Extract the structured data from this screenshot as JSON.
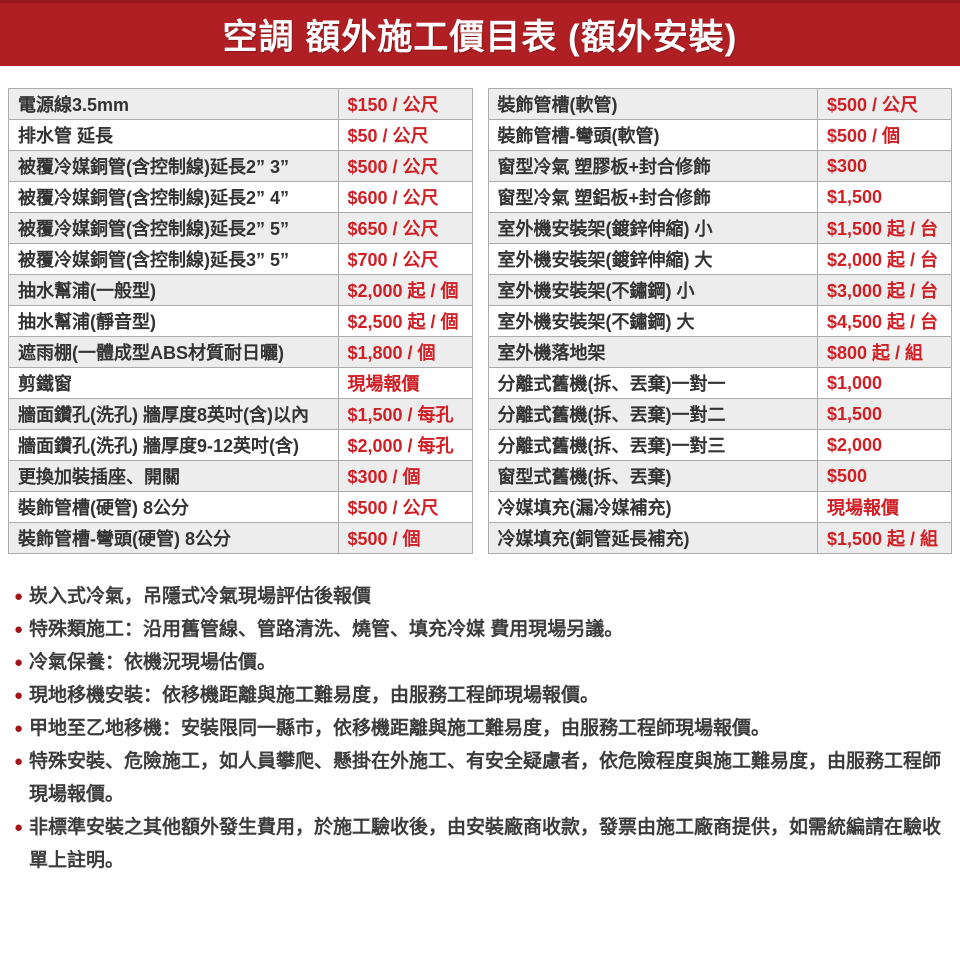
{
  "header": {
    "title": "空調 額外施工價目表 (額外安裝)"
  },
  "colors": {
    "banner_red": "#b01f24",
    "price_red": "#d01f25",
    "bullet_red": "#a31418",
    "row_stripe": "#ededed"
  },
  "left_table": {
    "rows": [
      {
        "item": "電源線3.5mm",
        "price": "$150 / 公尺"
      },
      {
        "item": "排水管 延長",
        "price": "$50 / 公尺"
      },
      {
        "item": "被覆冷媒銅管(含控制線)延長2” 3”",
        "price": "$500 / 公尺"
      },
      {
        "item": "被覆冷媒銅管(含控制線)延長2” 4”",
        "price": "$600 / 公尺"
      },
      {
        "item": "被覆冷媒銅管(含控制線)延長2” 5”",
        "price": "$650 / 公尺"
      },
      {
        "item": "被覆冷媒銅管(含控制線)延長3” 5”",
        "price": "$700 / 公尺"
      },
      {
        "item": "抽水幫浦(一般型)",
        "price": "$2,000 起 / 個"
      },
      {
        "item": "抽水幫浦(靜音型)",
        "price": "$2,500 起 / 個"
      },
      {
        "item": "遮雨棚(一體成型ABS材質耐日曬)",
        "price": "$1,800 / 個"
      },
      {
        "item": "剪鐵窗",
        "price": "現場報價"
      },
      {
        "item": "牆面鑽孔(洗孔) 牆厚度8英吋(含)以內",
        "price": "$1,500 / 每孔"
      },
      {
        "item": "牆面鑽孔(洗孔) 牆厚度9-12英吋(含)",
        "price": "$2,000 / 每孔"
      },
      {
        "item": "更換加裝插座、開關",
        "price": "$300 / 個"
      },
      {
        "item": "裝飾管槽(硬管) 8公分",
        "price": "$500 / 公尺"
      },
      {
        "item": "裝飾管槽-彎頭(硬管) 8公分",
        "price": "$500 / 個"
      }
    ]
  },
  "right_table": {
    "rows": [
      {
        "item": "裝飾管槽(軟管)",
        "price": "$500 / 公尺"
      },
      {
        "item": "裝飾管槽-彎頭(軟管)",
        "price": "$500 / 個"
      },
      {
        "item": "窗型冷氣 塑膠板+封合修飾",
        "price": "$300"
      },
      {
        "item": "窗型冷氣 塑鋁板+封合修飾",
        "price": "$1,500"
      },
      {
        "item": "室外機安裝架(鍍鋅伸縮) 小",
        "price": "$1,500 起 / 台"
      },
      {
        "item": "室外機安裝架(鍍鋅伸縮) 大",
        "price": "$2,000 起 / 台"
      },
      {
        "item": "室外機安裝架(不鏽鋼) 小",
        "price": "$3,000 起 / 台"
      },
      {
        "item": "室外機安裝架(不鏽鋼) 大",
        "price": "$4,500 起 / 台"
      },
      {
        "item": "室外機落地架",
        "price": "$800 起 / 組"
      },
      {
        "item": "分離式舊機(拆、丟棄)一對一",
        "price": "$1,000"
      },
      {
        "item": "分離式舊機(拆、丟棄)一對二",
        "price": "$1,500"
      },
      {
        "item": "分離式舊機(拆、丟棄)一對三",
        "price": "$2,000"
      },
      {
        "item": "窗型式舊機(拆、丟棄)",
        "price": "$500"
      },
      {
        "item": "冷媒填充(漏冷媒補充)",
        "price": "現場報價"
      },
      {
        "item": "冷媒填充(銅管延長補充)",
        "price": "$1,500 起 / 組"
      }
    ]
  },
  "notes": [
    "崁入式冷氣，吊隱式冷氣現場評估後報價",
    "特殊類施工：沿用舊管線、管路清洗、燒管、填充冷媒 費用現場另議。",
    "冷氣保養：依機況現場估價。",
    "現地移機安裝：依移機距離與施工難易度，由服務工程師現場報價。",
    "甲地至乙地移機：安裝限同一縣市，依移機距離與施工難易度，由服務工程師現場報價。",
    "特殊安裝、危險施工，如人員攀爬、懸掛在外施工、有安全疑慮者，依危險程度與施工難易度，由服務工程師現場報價。",
    "非標準安裝之其他額外發生費用，於施工驗收後，由安裝廠商收款，發票由施工廠商提供，如需統編請在驗收單上註明。"
  ]
}
